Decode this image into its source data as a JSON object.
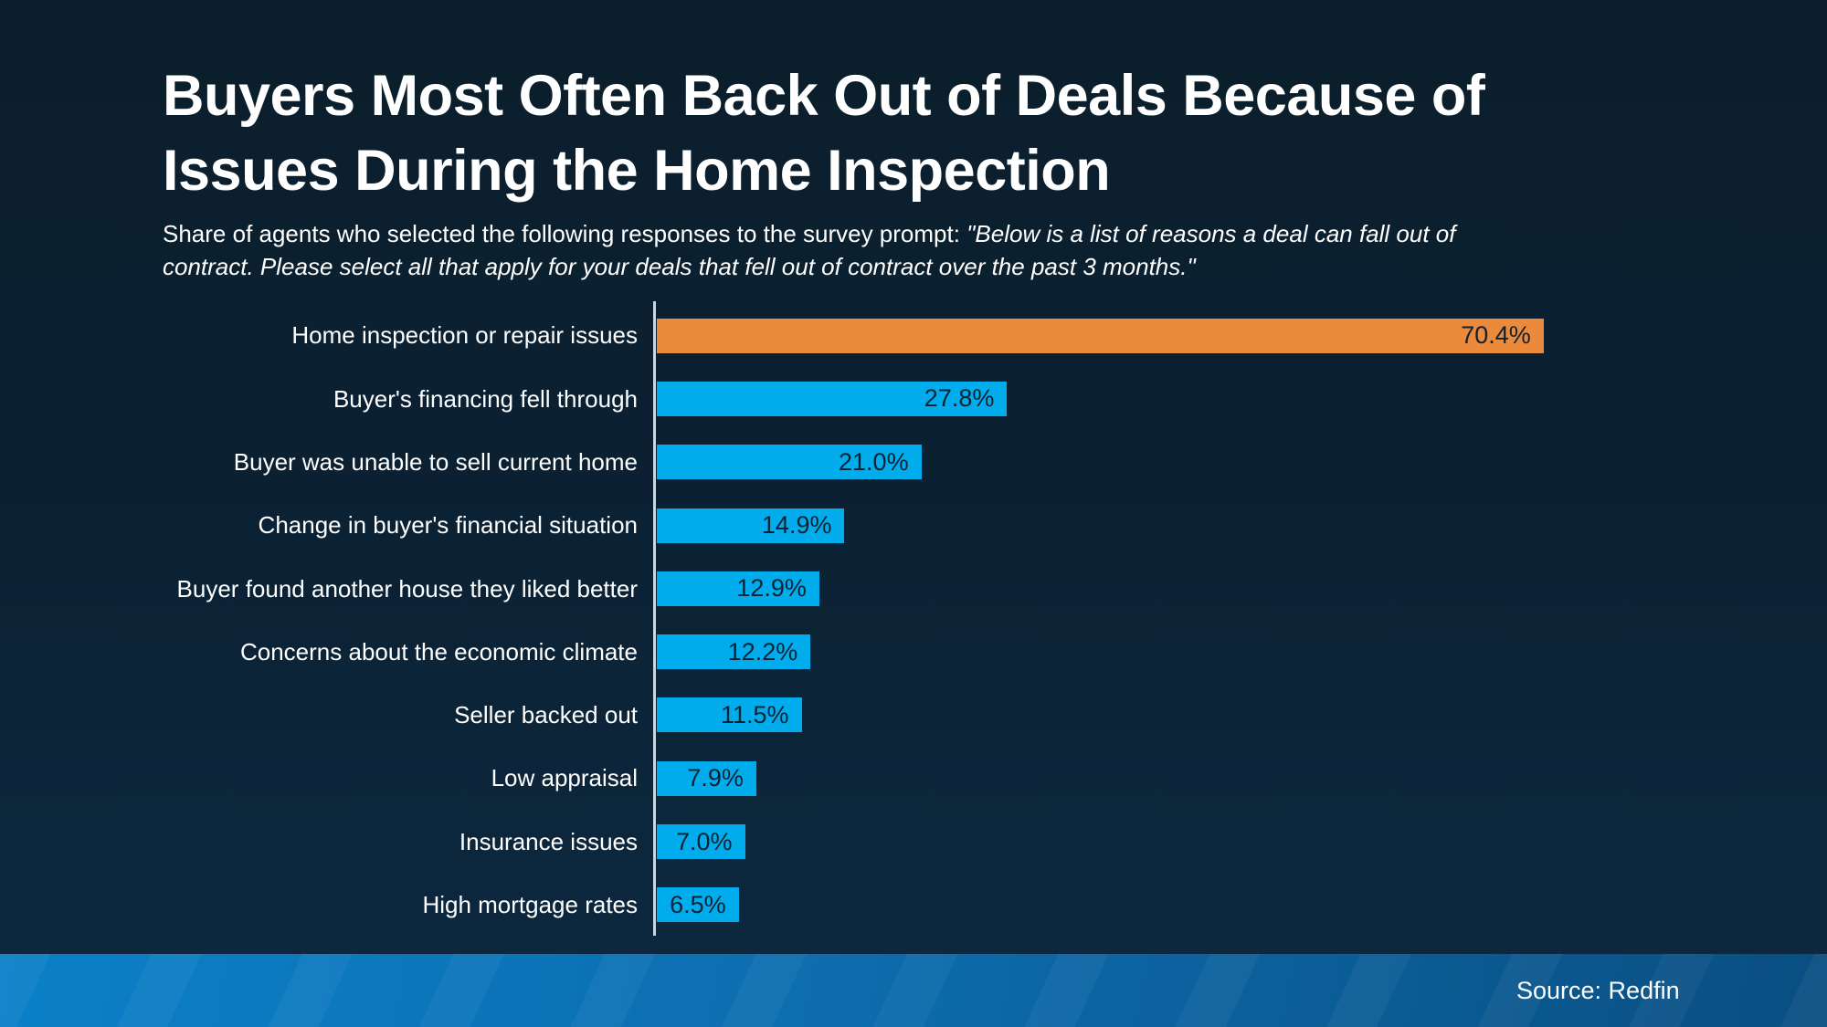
{
  "page": {
    "title_lines": [
      "Buyers Most Often Back Out of Deals Because of",
      "Issues During the Home Inspection"
    ],
    "subtitle_lines": [
      [
        {
          "text": "Share of agents who selected the following responses to the survey prompt: ",
          "italic": false
        },
        {
          "text": "\"Below is a list of reasons a deal can fall out of",
          "italic": true
        }
      ],
      [
        {
          "text": "contract. Please select all that apply for your deals that fell out of contract over the past 3 months.\"",
          "italic": true
        }
      ]
    ],
    "footer": {
      "source_label": "Source: Redfin"
    }
  },
  "colors": {
    "background_top": "#0b1e2b",
    "background_bottom": "#0d2940",
    "bar_default": "#00acec",
    "bar_highlight": "#ea8a3a",
    "bar_value_text": "#0c2232",
    "axis_line": "#ccd6de",
    "text_primary": "#ffffff",
    "footer_gradient_left": "#0b80c8",
    "footer_gradient_right": "#094e81"
  },
  "chart_data": {
    "type": "bar",
    "orientation": "horizontal",
    "title": "Buyers Most Often Back Out of Deals Because of Issues During the Home Inspection",
    "subtitle": "Share of agents who selected the following responses to the survey prompt: \"Below is a list of reasons a deal can fall out of contract. Please select all that apply for your deals that fell out of contract over the past 3 months.\"",
    "unit": "%",
    "categories": [
      "Home inspection or repair issues",
      "Buyer's financing fell through",
      "Buyer was unable to sell current home",
      "Change in buyer's financial situation",
      "Buyer found another house they liked better",
      "Concerns about the economic climate",
      "Seller backed out",
      "Low appraisal",
      "Insurance issues",
      "High mortgage rates"
    ],
    "values": [
      70.4,
      27.8,
      21.0,
      14.9,
      12.9,
      12.2,
      11.5,
      7.9,
      7.0,
      6.5
    ],
    "value_labels": [
      "70.4%",
      "27.8%",
      "21.0%",
      "14.9%",
      "12.9%",
      "12.2%",
      "11.5%",
      "7.9%",
      "7.0%",
      "6.5%"
    ],
    "highlight_index": 0,
    "xlabel": "",
    "ylabel": "",
    "xlim": [
      0,
      75
    ],
    "grid": false,
    "legend": false,
    "value_label_position": "inside-right",
    "source": "Redfin"
  }
}
